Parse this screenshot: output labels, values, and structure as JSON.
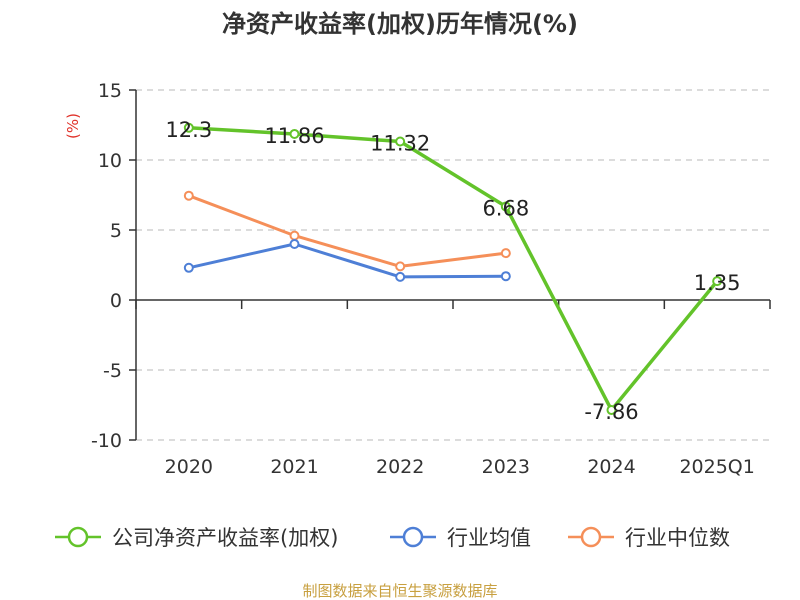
{
  "chart_data": {
    "type": "line",
    "title": "净资产收益率(加权)历年情况(%)",
    "unit_label": "(%)",
    "categories": [
      "2020",
      "2021",
      "2022",
      "2023",
      "2024",
      "2025Q1"
    ],
    "ylim": [
      -10,
      15
    ],
    "yticks": [
      15,
      10,
      5,
      0,
      -5,
      -10
    ],
    "grid": true,
    "legend_position": "bottom",
    "series": [
      {
        "name": "公司净资产收益率(加权)",
        "color": "#63c32a",
        "values": [
          12.3,
          11.86,
          11.32,
          6.68,
          -7.86,
          1.35
        ],
        "labels": [
          "12.3",
          "11.86",
          "11.32",
          "6.68",
          "-7.86",
          "1.35"
        ]
      },
      {
        "name": "行业均值",
        "color": "#4e7fd6",
        "values": [
          2.3,
          4.0,
          1.65,
          1.7,
          null,
          null
        ]
      },
      {
        "name": "行业中位数",
        "color": "#f58f59",
        "values": [
          7.45,
          4.6,
          2.4,
          3.35,
          null,
          null
        ]
      }
    ],
    "unit_color": "#e0322a",
    "source_color": "#c8a040"
  },
  "source": "制图数据来自恒生聚源数据库"
}
